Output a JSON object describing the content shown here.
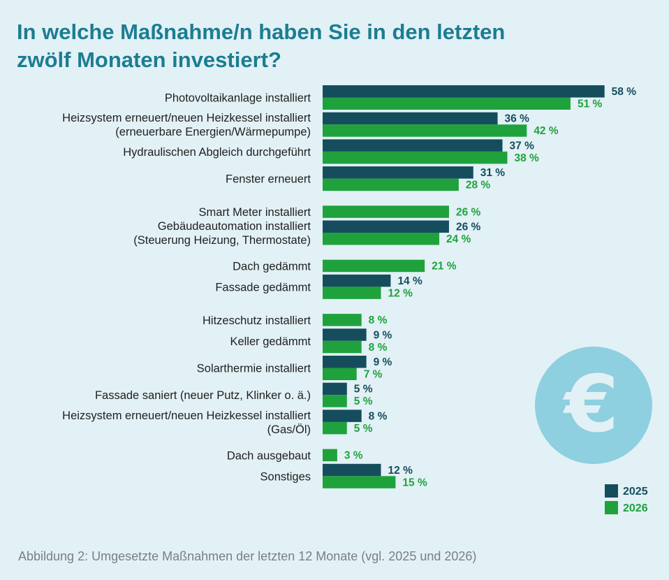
{
  "title_line1": "In welche Maßnahme/n haben Sie in den letzten",
  "title_line2": "zwölf Monaten investiert?",
  "caption": "Abbildung 2: Umgesetzte Maßnahmen der letzten 12 Monate (vgl. 2025 und 2026)",
  "icon": "euro-coin-icon",
  "colors": {
    "s2025": "#164d5d",
    "s2026": "#1fa23c",
    "background": "#e2f1f6",
    "title": "#1c7d92",
    "euro_circle": "#8ecfe0"
  },
  "chart_data": {
    "type": "bar",
    "orientation": "horizontal",
    "xlim": [
      0,
      60
    ],
    "grid": false,
    "legend": "bottom-right",
    "value_suffix": " %",
    "categories": [
      [
        "Photovoltaikanlage installiert"
      ],
      [
        "Heizsystem erneuert/neuen Heizkessel installiert",
        "(erneuerbare Energien/Wärmepumpe)"
      ],
      [
        "Hydraulischen Abgleich durchgeführt"
      ],
      [
        "Fenster erneuert"
      ],
      [
        "Smart Meter installiert"
      ],
      [
        "Gebäudeautomation installiert",
        "(Steuerung Heizung, Thermostate)"
      ],
      [
        "Dach gedämmt"
      ],
      [
        "Fassade gedämmt"
      ],
      [
        "Hitzeschutz installiert"
      ],
      [
        "Keller gedämmt"
      ],
      [
        "Solarthermie installiert"
      ],
      [
        "Fassade saniert (neuer Putz, Klinker o. ä.)"
      ],
      [
        "Heizsystem erneuert/neuen Heizkessel installiert",
        "(Gas/Öl)"
      ],
      [
        "Dach ausgebaut"
      ],
      [
        "Sonstiges"
      ]
    ],
    "series": [
      {
        "name": "2025",
        "values": [
          58,
          36,
          37,
          31,
          null,
          26,
          null,
          14,
          null,
          9,
          9,
          5,
          8,
          null,
          12
        ]
      },
      {
        "name": "2026",
        "values": [
          51,
          42,
          38,
          28,
          26,
          24,
          21,
          12,
          8,
          8,
          7,
          5,
          5,
          3,
          15
        ]
      }
    ]
  }
}
